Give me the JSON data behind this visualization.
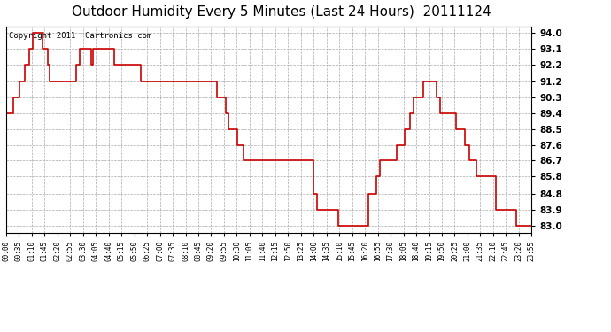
{
  "title": "Outdoor Humidity Every 5 Minutes (Last 24 Hours)  20111124",
  "copyright": "Copyright 2011  Cartronics.com",
  "ylabel_right_ticks": [
    83.0,
    83.9,
    84.8,
    85.8,
    86.7,
    87.6,
    88.5,
    89.4,
    90.3,
    91.2,
    92.2,
    93.1,
    94.0
  ],
  "ylim": [
    82.6,
    94.35
  ],
  "line_color": "#cc0000",
  "bg_color": "#ffffff",
  "plot_bg_color": "#ffffff",
  "grid_color": "#aaaaaa",
  "title_fontsize": 11,
  "copyright_fontsize": 6.5,
  "humidity_values": [
    89.4,
    89.4,
    89.4,
    89.4,
    90.3,
    90.3,
    90.3,
    91.2,
    91.2,
    91.2,
    92.2,
    92.2,
    93.1,
    93.1,
    94.0,
    94.0,
    94.0,
    94.0,
    94.0,
    93.1,
    93.1,
    93.1,
    92.2,
    91.2,
    91.2,
    91.2,
    91.2,
    91.2,
    91.2,
    91.2,
    91.2,
    91.2,
    91.2,
    91.2,
    91.2,
    91.2,
    91.2,
    92.2,
    92.2,
    93.1,
    93.1,
    93.1,
    93.1,
    93.1,
    93.1,
    92.2,
    93.1,
    93.1,
    93.1,
    93.1,
    93.1,
    93.1,
    93.1,
    93.1,
    93.1,
    93.1,
    93.1,
    92.2,
    92.2,
    92.2,
    92.2,
    92.2,
    92.2,
    92.2,
    92.2,
    92.2,
    92.2,
    92.2,
    92.2,
    92.2,
    92.2,
    91.2,
    91.2,
    91.2,
    91.2,
    91.2,
    91.2,
    91.2,
    91.2,
    91.2,
    91.2,
    91.2,
    91.2,
    91.2,
    91.2,
    91.2,
    91.2,
    91.2,
    91.2,
    91.2,
    91.2,
    91.2,
    91.2,
    91.2,
    91.2,
    91.2,
    91.2,
    91.2,
    91.2,
    91.2,
    91.2,
    91.2,
    91.2,
    91.2,
    91.2,
    91.2,
    91.2,
    91.2,
    91.2,
    91.2,
    91.2,
    90.3,
    90.3,
    90.3,
    90.3,
    90.3,
    89.4,
    88.5,
    88.5,
    88.5,
    88.5,
    88.5,
    87.6,
    87.6,
    87.6,
    86.7,
    86.7,
    86.7,
    86.7,
    86.7,
    86.7,
    86.7,
    86.7,
    86.7,
    86.7,
    86.7,
    86.7,
    86.7,
    86.7,
    86.7,
    86.7,
    86.7,
    86.7,
    86.7,
    86.7,
    86.7,
    86.7,
    86.7,
    86.7,
    86.7,
    86.7,
    86.7,
    86.7,
    86.7,
    86.7,
    86.7,
    86.7,
    86.7,
    86.7,
    86.7,
    86.7,
    86.7,
    84.8,
    84.8,
    83.9,
    83.9,
    83.9,
    83.9,
    83.9,
    83.9,
    83.9,
    83.9,
    83.9,
    83.9,
    83.9,
    83.0,
    83.0,
    83.0,
    83.0,
    83.0,
    83.0,
    83.0,
    83.0,
    83.0,
    83.0,
    83.0,
    83.0,
    83.0,
    83.0,
    83.0,
    83.0,
    84.8,
    84.8,
    84.8,
    84.8,
    85.8,
    85.8,
    86.7,
    86.7,
    86.7,
    86.7,
    86.7,
    86.7,
    86.7,
    86.7,
    86.7,
    87.6,
    87.6,
    87.6,
    87.6,
    88.5,
    88.5,
    88.5,
    89.4,
    89.4,
    90.3,
    90.3,
    90.3,
    90.3,
    90.3,
    91.2,
    91.2,
    91.2,
    91.2,
    91.2,
    91.2,
    91.2,
    90.3,
    90.3,
    89.4,
    89.4,
    89.4,
    89.4,
    89.4,
    89.4,
    89.4,
    89.4,
    88.5,
    88.5,
    88.5,
    88.5,
    88.5,
    87.6,
    87.6,
    86.7,
    86.7,
    86.7,
    86.7,
    85.8,
    85.8,
    85.8,
    85.8,
    85.8,
    85.8,
    85.8,
    85.8,
    85.8,
    85.8,
    83.9,
    83.9,
    83.9,
    83.9,
    83.9,
    83.9,
    83.9,
    83.9,
    83.9,
    83.9,
    83.9,
    83.0,
    83.0,
    83.0,
    83.0,
    83.0,
    83.0,
    83.0,
    83.0,
    83.0
  ],
  "xtick_labels": [
    "00:00",
    "00:35",
    "01:10",
    "01:45",
    "02:20",
    "02:55",
    "03:30",
    "04:05",
    "04:40",
    "05:15",
    "05:50",
    "06:25",
    "07:00",
    "07:35",
    "08:10",
    "08:45",
    "09:20",
    "09:55",
    "10:30",
    "11:05",
    "11:40",
    "12:15",
    "12:50",
    "13:25",
    "14:00",
    "14:35",
    "15:10",
    "15:45",
    "16:20",
    "16:55",
    "17:30",
    "18:05",
    "18:40",
    "19:15",
    "19:50",
    "20:25",
    "21:00",
    "21:35",
    "22:10",
    "22:45",
    "23:20",
    "23:55"
  ]
}
